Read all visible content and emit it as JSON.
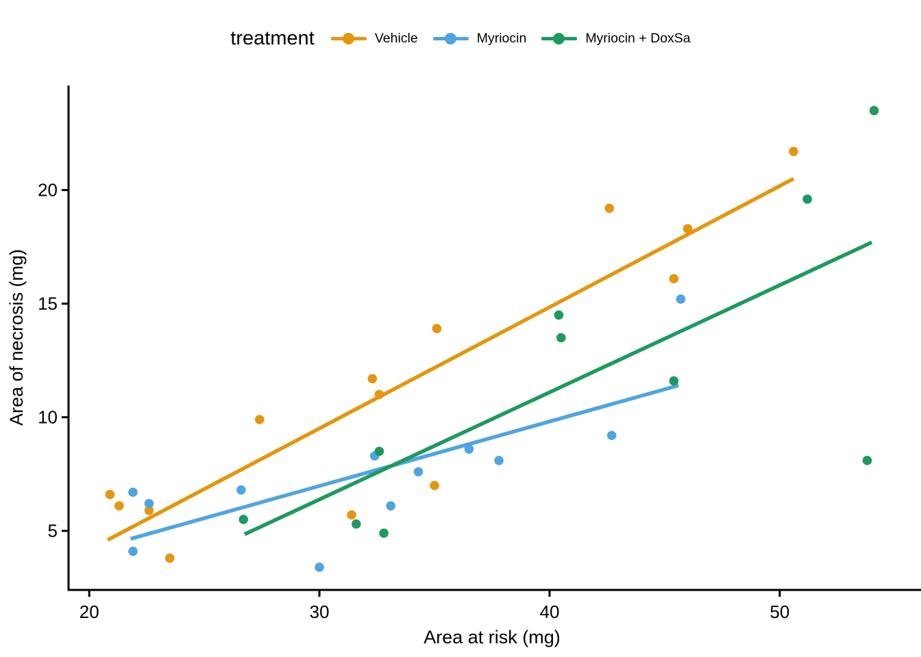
{
  "figure": {
    "background": "#ffffff",
    "text_color": "#000000",
    "axis_color": "#000000"
  },
  "chart_data": {
    "type": "scatter",
    "title": "",
    "legend_title": "treatment",
    "legend_position": "top-center",
    "xlabel": "Area at risk (mg)",
    "ylabel": "Area of necrosis (mg)",
    "xlim": [
      19.1,
      55.9
    ],
    "ylim": [
      2.4,
      24.6
    ],
    "xticks": [
      20,
      30,
      40,
      50
    ],
    "yticks": [
      5,
      10,
      15,
      20
    ],
    "grid": false,
    "series": [
      {
        "name": "Vehicle",
        "color": "#E4970E",
        "points": [
          [
            20.9,
            6.6
          ],
          [
            21.3,
            6.1
          ],
          [
            22.6,
            5.9
          ],
          [
            23.5,
            3.8
          ],
          [
            27.4,
            9.9
          ],
          [
            31.4,
            5.7
          ],
          [
            32.3,
            11.7
          ],
          [
            32.6,
            11.0
          ],
          [
            35.0,
            7.0
          ],
          [
            35.1,
            13.9
          ],
          [
            42.6,
            19.2
          ],
          [
            45.4,
            16.1
          ],
          [
            46.0,
            18.3
          ],
          [
            50.6,
            21.7
          ]
        ],
        "trend": {
          "x1": 20.8,
          "y1": 4.6,
          "x2": 50.6,
          "y2": 20.5
        }
      },
      {
        "name": "Myriocin",
        "color": "#4FA5E0",
        "points": [
          [
            21.9,
            6.7
          ],
          [
            21.9,
            4.1
          ],
          [
            22.6,
            6.2
          ],
          [
            26.6,
            6.8
          ],
          [
            30.0,
            3.4
          ],
          [
            32.4,
            8.3
          ],
          [
            33.1,
            6.1
          ],
          [
            34.3,
            7.6
          ],
          [
            36.5,
            8.6
          ],
          [
            37.8,
            8.1
          ],
          [
            42.7,
            9.2
          ],
          [
            45.7,
            15.2
          ]
        ],
        "trend": {
          "x1": 21.8,
          "y1": 4.65,
          "x2": 45.6,
          "y2": 11.4
        }
      },
      {
        "name": "Myriocin + DoxSa",
        "color": "#1D9A60",
        "points": [
          [
            26.7,
            5.5
          ],
          [
            31.6,
            5.3
          ],
          [
            32.6,
            8.5
          ],
          [
            32.8,
            4.9
          ],
          [
            40.4,
            14.5
          ],
          [
            40.5,
            13.5
          ],
          [
            45.4,
            11.6
          ],
          [
            51.2,
            19.6
          ],
          [
            53.8,
            8.1
          ],
          [
            54.1,
            23.5
          ]
        ],
        "trend": {
          "x1": 26.75,
          "y1": 4.85,
          "x2": 54.0,
          "y2": 17.7
        }
      }
    ]
  }
}
